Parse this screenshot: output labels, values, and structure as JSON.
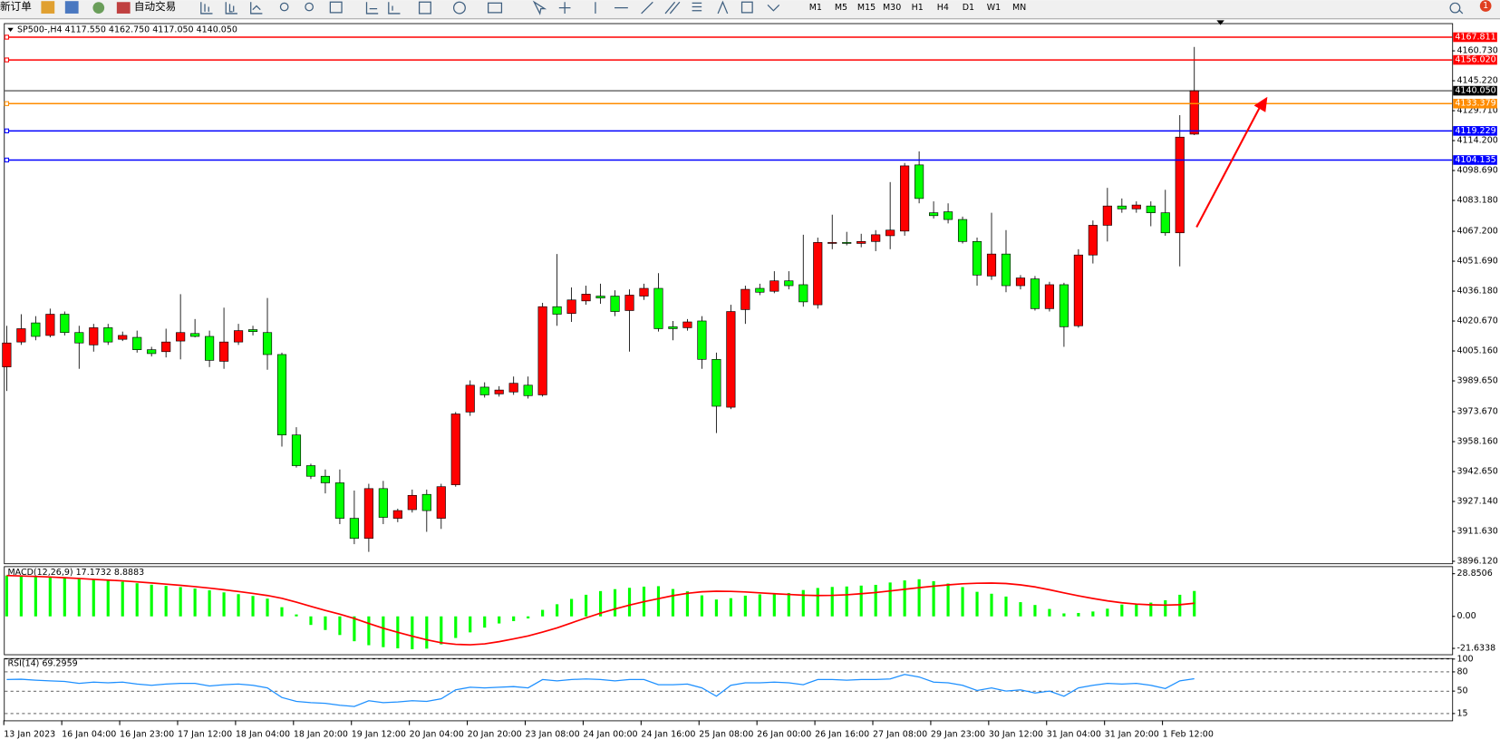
{
  "toolbar": {
    "new_order": "新订单",
    "auto_trading": "自动交易",
    "timeframes": [
      "M1",
      "M5",
      "M15",
      "M30",
      "H1",
      "H4",
      "D1",
      "W1",
      "MN"
    ],
    "notifications": 1
  },
  "chart_data": [
    {
      "type": "candlestick",
      "title": "SP500-,H4  4117.550 4162.750 4117.050 4140.050",
      "categories": [
        "13 Jan 2023",
        null,
        null,
        null,
        "16 Jan 04:00",
        null,
        null,
        null,
        "16 Jan 23:00",
        null,
        null,
        null,
        "17 Jan 12:00",
        null,
        null,
        null,
        "18 Jan 04:00",
        null,
        null,
        null,
        "18 Jan 20:00",
        null,
        null,
        null,
        "19 Jan 12:00",
        null,
        null,
        null,
        "20 Jan 04:00",
        null,
        null,
        null,
        "20 Jan 20:00",
        null,
        null,
        null,
        "23 Jan 08:00",
        null,
        null,
        null,
        "24 Jan 00:00",
        null,
        null,
        null,
        "24 Jan 16:00",
        null,
        null,
        null,
        "25 Jan 08:00",
        null,
        null,
        null,
        "26 Jan 00:00",
        null,
        null,
        null,
        "26 Jan 16:00",
        null,
        null,
        null,
        "27 Jan 08:00",
        null,
        null,
        null,
        "29 Jan 23:00",
        null,
        null,
        null,
        "30 Jan 12:00",
        null,
        null,
        null,
        "31 Jan 04:00",
        null,
        null,
        null,
        "31 Jan 20:00",
        null,
        null,
        null,
        "1 Feb 12:00",
        null,
        null
      ],
      "open": [
        3996.9,
        4009.8,
        4019.7,
        4013.2,
        4024.2,
        4014.7,
        4008.3,
        4017.2,
        4011.2,
        4012.2,
        4005.8,
        4004.8,
        4010.3,
        4014.2,
        4012.7,
        3999.8,
        4009.8,
        4016.2,
        4014.7,
        4003.3,
        3961.6,
        3945.7,
        3940.2,
        3936.8,
        3918.4,
        3908.0,
        3933.8,
        3918.4,
        3922.9,
        3930.8,
        3918.4,
        3935.8,
        3973.5,
        3986.4,
        3982.9,
        3983.9,
        3987.4,
        3982.4,
        4028.1,
        4024.6,
        4031.1,
        4033.6,
        4033.6,
        4026.1,
        4033.6,
        4037.6,
        4017.7,
        4017.2,
        4020.7,
        4000.8,
        3976.0,
        4026.6,
        4037.6,
        4036.1,
        4041.5,
        4039.5,
        4029.1,
        4060.9,
        4061.4,
        4060.9,
        4061.9,
        4064.9,
        4067.3,
        4101.6,
        4076.8,
        4077.3,
        4073.3,
        4061.9,
        4044.0,
        4055.4,
        4039.0,
        4042.5,
        4027.1,
        4039.5,
        4018.2,
        4054.9,
        4070.3,
        4080.3,
        4078.8,
        4080.3,
        4076.8,
        4066.4,
        4117.55
      ],
      "high": [
        4018.2,
        4024.2,
        4023.2,
        4027.1,
        4025.6,
        4018.2,
        4019.2,
        4019.2,
        4015.2,
        4015.7,
        4007.3,
        4016.7,
        4034.6,
        4021.7,
        4015.7,
        4027.6,
        4019.2,
        4018.2,
        4032.6,
        4004.3,
        3965.6,
        3946.7,
        3943.7,
        3943.7,
        3932.8,
        3936.3,
        3937.8,
        3923.4,
        3933.3,
        3933.3,
        3936.3,
        3973.5,
        3989.9,
        3988.9,
        3986.9,
        3991.9,
        3991.9,
        4030.1,
        4055.4,
        4038.1,
        4039.0,
        4040.0,
        4036.6,
        4037.1,
        4040.0,
        4045.5,
        4020.7,
        4021.7,
        4023.2,
        4004.3,
        4029.1,
        4039.0,
        4040.0,
        4046.5,
        4046.5,
        4065.4,
        4063.9,
        4075.8,
        4066.9,
        4065.9,
        4067.8,
        4092.7,
        4102.6,
        4108.6,
        4082.7,
        4081.7,
        4074.8,
        4063.9,
        4076.8,
        4067.8,
        4044.5,
        4044.0,
        4041.0,
        4040.5,
        4057.9,
        4072.8,
        4089.7,
        4084.2,
        4082.7,
        4082.7,
        4088.7,
        4127.4,
        4162.75
      ],
      "low": [
        3984.4,
        4008.3,
        4010.7,
        4012.2,
        4013.2,
        3995.9,
        4004.8,
        4008.3,
        4010.3,
        4004.3,
        4002.3,
        4001.8,
        4000.8,
        4012.2,
        3996.8,
        3995.9,
        4008.3,
        4013.2,
        3995.4,
        3955.6,
        3944.7,
        3938.8,
        3931.3,
        3915.4,
        3905.0,
        3901.0,
        3915.4,
        3916.4,
        3921.4,
        3911.4,
        3912.9,
        3934.8,
        3971.5,
        3981.0,
        3981.5,
        3982.4,
        3980.5,
        3981.5,
        4018.2,
        4020.2,
        4029.1,
        4029.6,
        4023.2,
        4004.8,
        4031.6,
        4015.2,
        4010.7,
        4015.7,
        3995.9,
        3962.6,
        3975.0,
        4019.2,
        4034.1,
        4035.1,
        4037.1,
        4028.1,
        4027.1,
        4057.9,
        4059.9,
        4058.9,
        4056.9,
        4057.9,
        4064.9,
        4081.7,
        4073.8,
        4071.3,
        4060.9,
        4039.0,
        4042.0,
        4035.6,
        4037.1,
        4026.1,
        4025.6,
        4007.3,
        4017.2,
        4050.5,
        4061.9,
        4076.8,
        4076.8,
        4069.8,
        4064.9,
        4049.0,
        4117.05
      ],
      "close": [
        4009.3,
        4016.7,
        4012.7,
        4024.2,
        4014.7,
        4009.3,
        4017.2,
        4009.8,
        4013.2,
        4005.8,
        4003.8,
        4009.8,
        4014.7,
        4012.7,
        4000.3,
        4009.8,
        4015.7,
        4015.2,
        4003.3,
        3961.6,
        3945.7,
        3940.2,
        3936.8,
        3918.4,
        3908.0,
        3933.8,
        3918.9,
        3922.4,
        3930.3,
        3922.4,
        3934.8,
        3972.5,
        3987.4,
        3982.4,
        3984.9,
        3988.4,
        3982.0,
        4028.1,
        4024.2,
        4031.6,
        4034.6,
        4032.6,
        4025.6,
        4034.1,
        4037.6,
        4016.7,
        4016.7,
        4020.2,
        4000.8,
        3976.5,
        4025.6,
        4037.1,
        4035.6,
        4041.5,
        4039.0,
        4030.6,
        4061.4,
        4061.4,
        4060.9,
        4061.9,
        4065.4,
        4067.8,
        4101.1,
        4084.2,
        4075.3,
        4073.3,
        4061.9,
        4044.5,
        4055.4,
        4039.0,
        4043.0,
        4027.1,
        4039.5,
        4017.7,
        4054.9,
        4070.3,
        4080.3,
        4078.8,
        4080.8,
        4076.8,
        4066.4,
        4116.0,
        4140.05
      ],
      "up_color": "#ff0000",
      "down_color": "#00ff00",
      "ylim": [
        3894.6,
        4174.6
      ],
      "yticks": [
        {
          "value": 4160.73,
          "label": "4160.730"
        },
        {
          "value": 4145.22,
          "label": "4145.220"
        },
        {
          "value": 4129.71,
          "label": "4129.710"
        },
        {
          "value": 4114.2,
          "label": "4114.200"
        },
        {
          "value": 4098.69,
          "label": "4098.690"
        },
        {
          "value": 4083.18,
          "label": "4083.180"
        },
        {
          "value": 4067.2,
          "label": "4067.200"
        },
        {
          "value": 4051.69,
          "label": "4051.690"
        },
        {
          "value": 4036.18,
          "label": "4036.180"
        },
        {
          "value": 4020.67,
          "label": "4020.670"
        },
        {
          "value": 4005.16,
          "label": "4005.160"
        },
        {
          "value": 3989.65,
          "label": "3989.650"
        },
        {
          "value": 3973.67,
          "label": "3973.670"
        },
        {
          "value": 3958.16,
          "label": "3958.160"
        },
        {
          "value": 3942.65,
          "label": "3942.650"
        },
        {
          "value": 3927.14,
          "label": "3927.140"
        },
        {
          "value": 3911.63,
          "label": "3911.630"
        },
        {
          "value": 3896.12,
          "label": "3896.120"
        }
      ],
      "levels": [
        {
          "value": 4167.811,
          "label": "4167.811",
          "color": "#ff0000"
        },
        {
          "value": 4156.02,
          "label": "4156.020",
          "color": "#ff0000"
        },
        {
          "value": 4133.379,
          "label": "4133.379",
          "color": "#ff8c00"
        },
        {
          "value": 4119.229,
          "label": "4119.229",
          "color": "#0000ff"
        },
        {
          "value": 4104.135,
          "label": "4104.135",
          "color": "#0000ff"
        }
      ],
      "bid": {
        "value": 4140.05,
        "label": "4140.050",
        "color": "#000000"
      }
    },
    {
      "type": "macd",
      "title": "MACD(12,26,9) 17.1732 8.8883",
      "series": [
        {
          "kind": "bar",
          "color": "#00ff00",
          "values": [
            27.6,
            27.4,
            27.2,
            26.8,
            26.3,
            25.6,
            25.0,
            24.2,
            23.4,
            22.4,
            21.4,
            20.6,
            19.8,
            18.8,
            17.6,
            16.2,
            15.0,
            13.8,
            12.0,
            6.2,
            1.3,
            -5.8,
            -9.2,
            -12.6,
            -16.8,
            -19.5,
            -20.8,
            -21.6,
            -22.2,
            -21.8,
            -18.9,
            -14.6,
            -10.8,
            -7.6,
            -4.8,
            -3.2,
            -1.4,
            4.4,
            8.2,
            11.8,
            14.6,
            17.1,
            18.4,
            19.3,
            20.1,
            20.4,
            18.5,
            16.9,
            14.2,
            11.4,
            12.3,
            14.0,
            14.9,
            15.6,
            15.8,
            17.8,
            19.2,
            19.9,
            20.2,
            20.8,
            21.3,
            22.9,
            24.3,
            25.1,
            23.8,
            22.2,
            19.8,
            16.6,
            15.3,
            13.4,
            9.6,
            7.7,
            5.0,
            2.0,
            2.3,
            3.3,
            5.2,
            8.0,
            8.6,
            9.3,
            10.9,
            14.6,
            17.1732
          ]
        },
        {
          "kind": "line",
          "color": "#ff0000",
          "values": [
            27.6,
            27.3,
            27.0,
            26.6,
            26.1,
            25.6,
            25.0,
            24.5,
            24.0,
            23.3,
            22.6,
            21.8,
            21.0,
            20.1,
            19.1,
            18.0,
            16.8,
            15.5,
            14.1,
            12.2,
            9.6,
            6.8,
            4.0,
            1.5,
            -1.4,
            -4.8,
            -8.0,
            -10.8,
            -13.4,
            -15.8,
            -17.8,
            -18.9,
            -19.2,
            -18.6,
            -17.1,
            -15.2,
            -13.2,
            -10.6,
            -7.8,
            -4.4,
            -1.0,
            2.2,
            5.0,
            7.6,
            9.9,
            12.0,
            14.0,
            15.6,
            16.6,
            17.0,
            16.9,
            16.5,
            15.9,
            15.3,
            14.8,
            14.3,
            14.1,
            14.2,
            14.6,
            15.3,
            16.1,
            17.2,
            18.3,
            19.4,
            20.4,
            21.3,
            22.0,
            22.4,
            22.5,
            22.2,
            21.3,
            19.9,
            18.0,
            15.9,
            13.9,
            12.1,
            10.5,
            9.2,
            8.3,
            7.8,
            7.6,
            7.9,
            8.8883
          ]
        }
      ],
      "ylim": [
        -25.6,
        33.3
      ],
      "yticks": [
        28.8506,
        {
          "value": 0,
          "label": "0.00"
        },
        -21.6338
      ]
    },
    {
      "type": "line",
      "title": "RSI(14) 69.2959",
      "color": "#1e90ff",
      "values": [
        68,
        68.5,
        67,
        66,
        65,
        62,
        64,
        63,
        64,
        61,
        59,
        61,
        62,
        62,
        58,
        60,
        61,
        59,
        55,
        40,
        34,
        32,
        31,
        28,
        26,
        35,
        32,
        33,
        35,
        34,
        38,
        52,
        56,
        55,
        56,
        57,
        55,
        68,
        66,
        68,
        69,
        68,
        66,
        68,
        68,
        60,
        60,
        61,
        55,
        42,
        59,
        63,
        63,
        64,
        63,
        60,
        68,
        68,
        67,
        68,
        68,
        69,
        76,
        72,
        64,
        63,
        59,
        51,
        55,
        50,
        52,
        47,
        50,
        42,
        55,
        59,
        62,
        61,
        62,
        59,
        54,
        66,
        69.2959
      ],
      "ylim": [
        4.4,
        100
      ],
      "yticks": [
        100,
        80,
        50,
        15
      ],
      "grid": "dashed"
    }
  ]
}
